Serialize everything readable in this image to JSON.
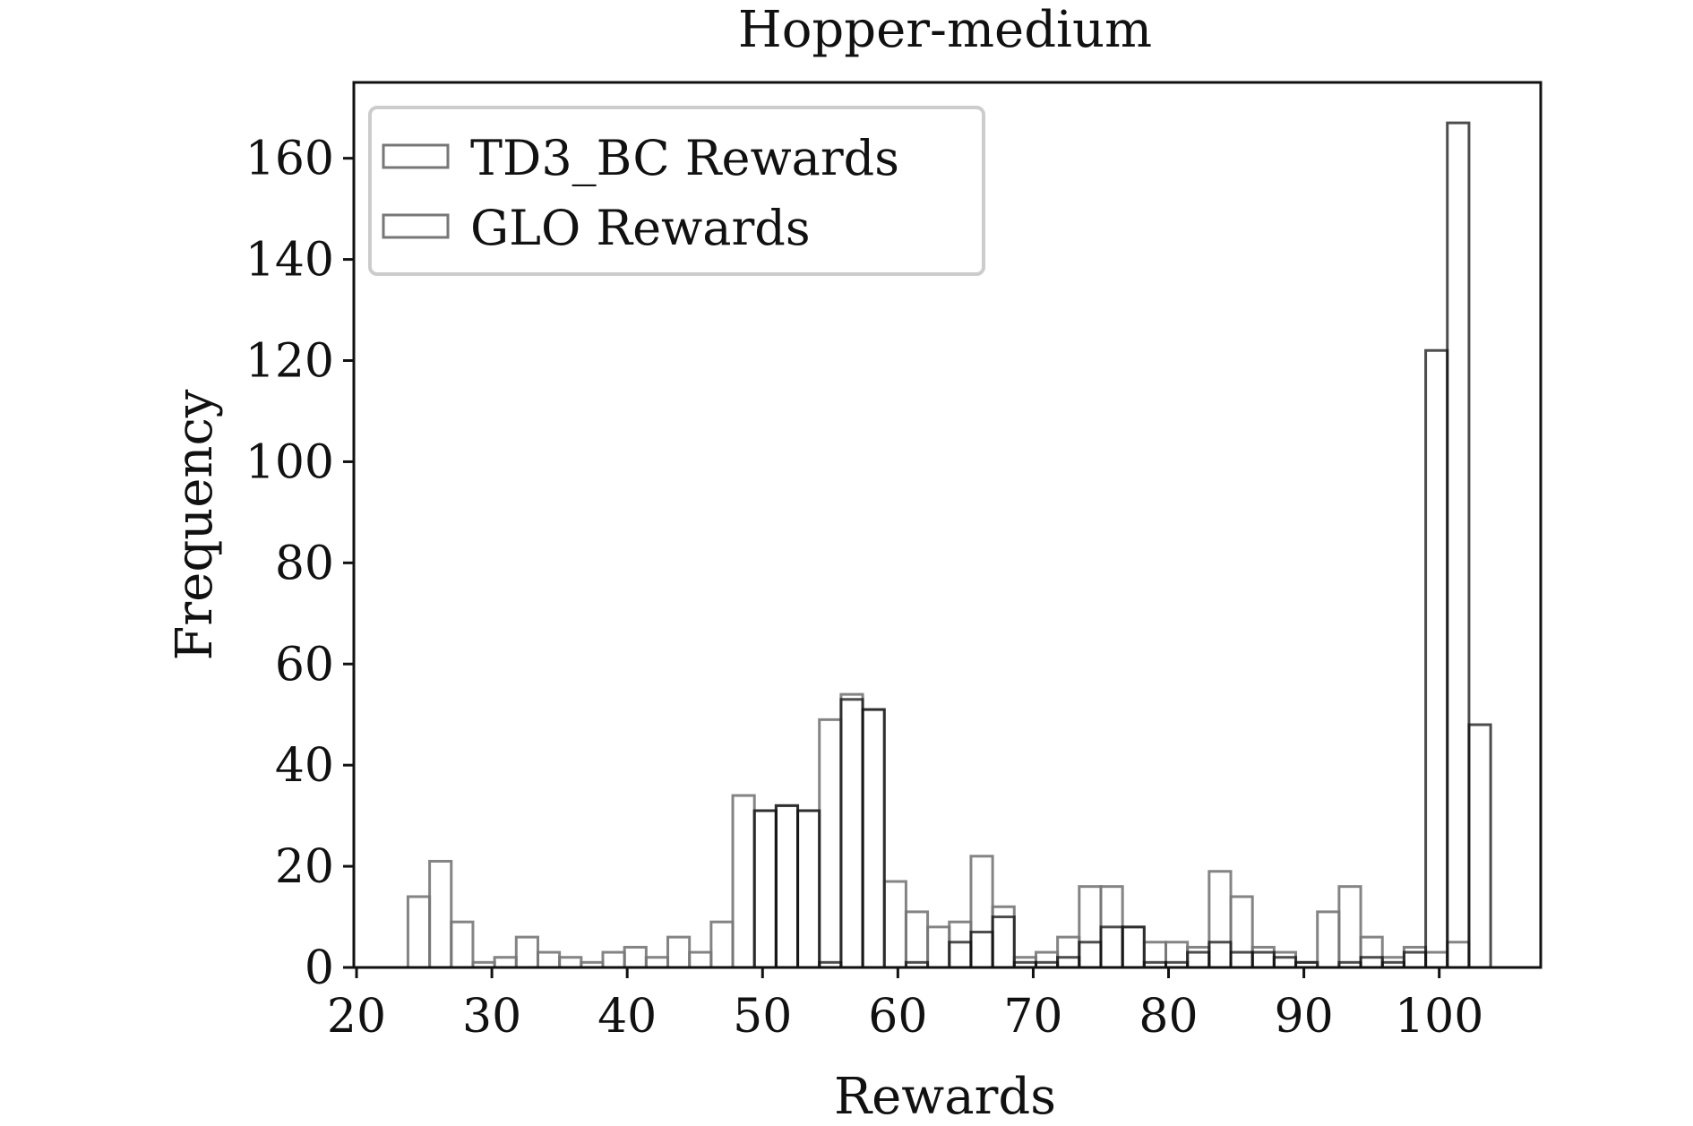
{
  "chart_data": {
    "type": "bar",
    "title": "Hopper-medium",
    "xlabel": "Rewards",
    "ylabel": "Frequency",
    "xlim": [
      19.8,
      107.5
    ],
    "ylim": [
      0,
      175
    ],
    "xticks": [
      20,
      30,
      40,
      50,
      60,
      70,
      80,
      90,
      100
    ],
    "yticks": [
      0,
      20,
      40,
      60,
      80,
      100,
      120,
      140,
      160
    ],
    "grid": false,
    "legend_position": "top-left",
    "bin_width": 1.6,
    "series": [
      {
        "name": "TD3_BC Rewards",
        "color": "#ffffff",
        "edge_color": "#777777",
        "bin_starts": [
          23.8,
          25.4,
          27.0,
          28.6,
          30.2,
          31.8,
          33.4,
          35.0,
          36.6,
          38.2,
          39.8,
          41.4,
          43.0,
          44.6,
          46.2,
          47.8,
          49.4,
          51.0,
          52.6,
          54.2,
          55.8,
          57.4,
          59.0,
          60.6,
          62.2,
          63.8,
          65.4,
          67.0,
          68.6,
          70.2,
          71.8,
          73.4,
          75.0,
          76.6,
          78.2,
          79.8,
          81.4,
          83.0,
          84.6,
          86.2,
          87.8,
          89.4,
          91.0,
          92.6,
          94.2,
          95.8,
          97.4,
          99.0,
          100.6,
          102.2
        ],
        "values": [
          14,
          21,
          9,
          1,
          2,
          6,
          3,
          2,
          1,
          3,
          4,
          2,
          6,
          3,
          9,
          34,
          31,
          32,
          31,
          49,
          54,
          51,
          17,
          11,
          8,
          9,
          22,
          12,
          2,
          3,
          6,
          16,
          16,
          8,
          5,
          5,
          4,
          19,
          14,
          4,
          3,
          1,
          11,
          16,
          6,
          2,
          4,
          3,
          5,
          0
        ]
      },
      {
        "name": "GLO Rewards",
        "color": "#ffffff",
        "edge_color": "#111111",
        "bin_starts": [
          23.8,
          25.4,
          27.0,
          28.6,
          30.2,
          31.8,
          33.4,
          35.0,
          36.6,
          38.2,
          39.8,
          41.4,
          43.0,
          44.6,
          46.2,
          47.8,
          49.4,
          51.0,
          52.6,
          54.2,
          55.8,
          57.4,
          59.0,
          60.6,
          62.2,
          63.8,
          65.4,
          67.0,
          68.6,
          70.2,
          71.8,
          73.4,
          75.0,
          76.6,
          78.2,
          79.8,
          81.4,
          83.0,
          84.6,
          86.2,
          87.8,
          89.4,
          91.0,
          92.6,
          94.2,
          95.8,
          97.4,
          99.0,
          100.6,
          102.2
        ],
        "values": [
          0,
          0,
          0,
          0,
          0,
          0,
          0,
          0,
          0,
          0,
          0,
          0,
          0,
          0,
          0,
          0,
          31,
          32,
          31,
          1,
          53,
          51,
          0,
          1,
          0,
          5,
          7,
          10,
          1,
          1,
          2,
          5,
          8,
          8,
          1,
          1,
          3,
          5,
          3,
          3,
          2,
          1,
          0,
          1,
          2,
          1,
          3,
          122,
          167,
          48
        ]
      }
    ]
  }
}
